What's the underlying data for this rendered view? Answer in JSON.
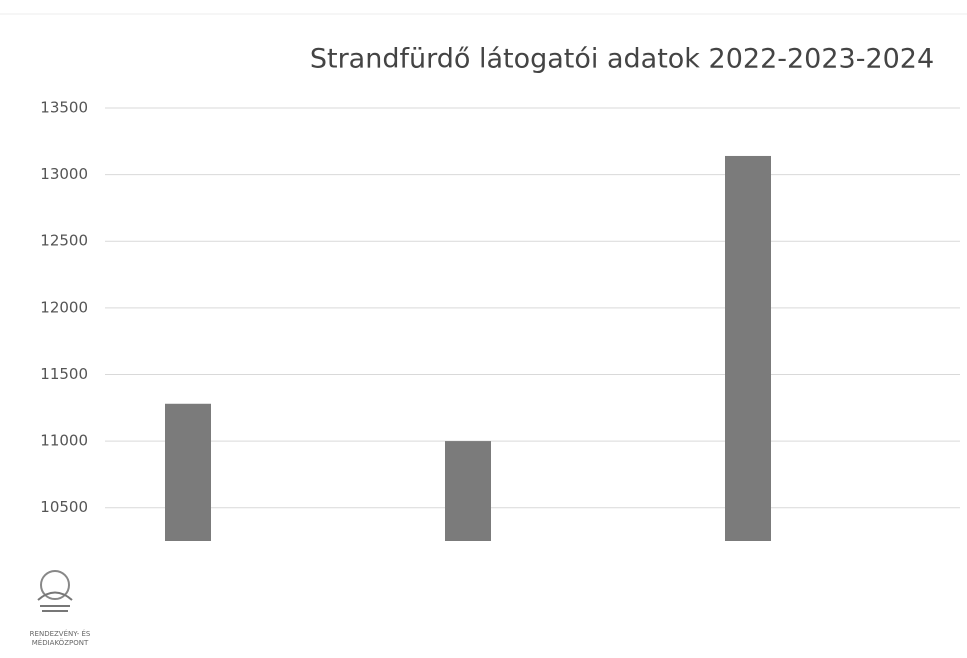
{
  "chart_data": {
    "type": "bar",
    "title": "Strandfürdő látogatói adatok 2022-2023-2024",
    "categories": [
      null,
      null,
      null
    ],
    "values": [
      11280,
      11000,
      13140
    ],
    "color": "#7b7b7b",
    "ylim": [
      10250,
      13500
    ],
    "yticks": [
      10500,
      11000,
      11500,
      12000,
      12500,
      13000,
      13500
    ],
    "grid": true
  },
  "logo": {
    "lines": [
      "RENDEZVÉNY- ÉS",
      "MÉDIAKÖZPONT"
    ]
  }
}
